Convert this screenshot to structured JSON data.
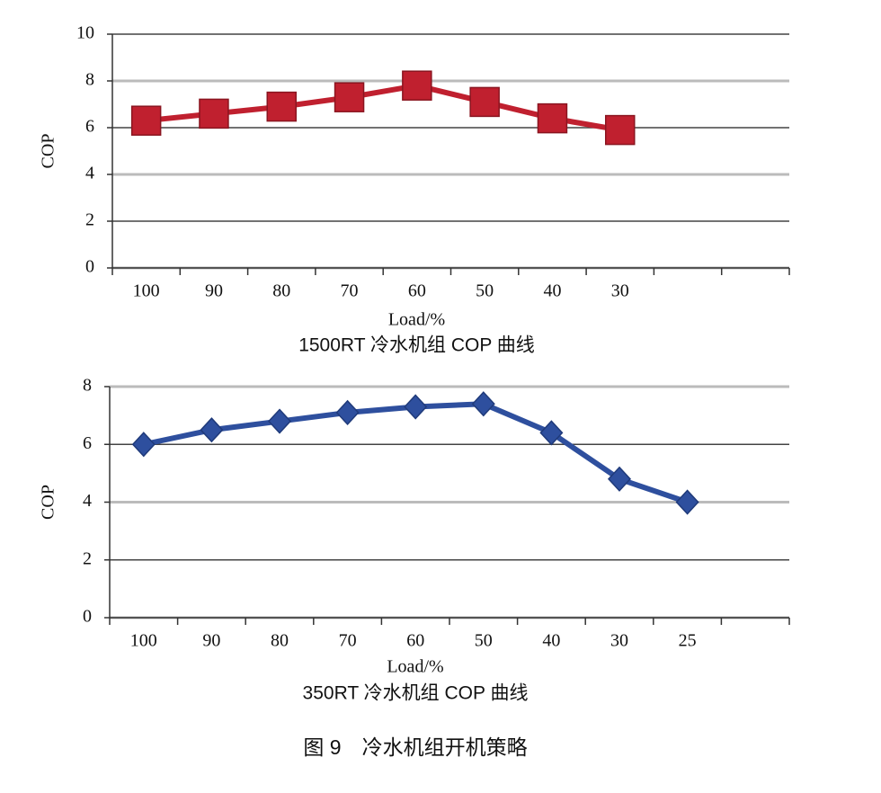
{
  "chart_data": [
    {
      "type": "line",
      "title": "1500RT 冷水机组 COP 曲线",
      "x_label": "Load/%",
      "y_label": "COP",
      "categories": [
        "100",
        "90",
        "80",
        "70",
        "60",
        "50",
        "40",
        "30",
        null,
        null
      ],
      "series": [
        {
          "name": "1500RT",
          "color": "#c0202f",
          "marker": "square",
          "values": [
            6.3,
            6.6,
            6.9,
            7.3,
            7.8,
            7.1,
            6.4,
            5.9,
            null,
            null
          ]
        }
      ],
      "ylim": [
        0,
        10
      ],
      "yticks": [
        0,
        2,
        4,
        6,
        8,
        10
      ],
      "grid": true
    },
    {
      "type": "line",
      "title": "350RT 冷水机组 COP 曲线",
      "x_label": "Load/%",
      "y_label": "COP",
      "categories": [
        "100",
        "90",
        "80",
        "70",
        "60",
        "50",
        "40",
        "30",
        "25",
        null
      ],
      "series": [
        {
          "name": "350RT",
          "color": "#2e4f9e",
          "marker": "diamond",
          "values": [
            6.0,
            6.5,
            6.8,
            7.1,
            7.3,
            7.4,
            6.4,
            4.8,
            4.0,
            null
          ]
        }
      ],
      "ylim": [
        0,
        8
      ],
      "yticks": [
        0,
        2,
        4,
        6,
        8
      ],
      "grid": true
    }
  ],
  "caption": "图 9　冷水机组开机策略"
}
